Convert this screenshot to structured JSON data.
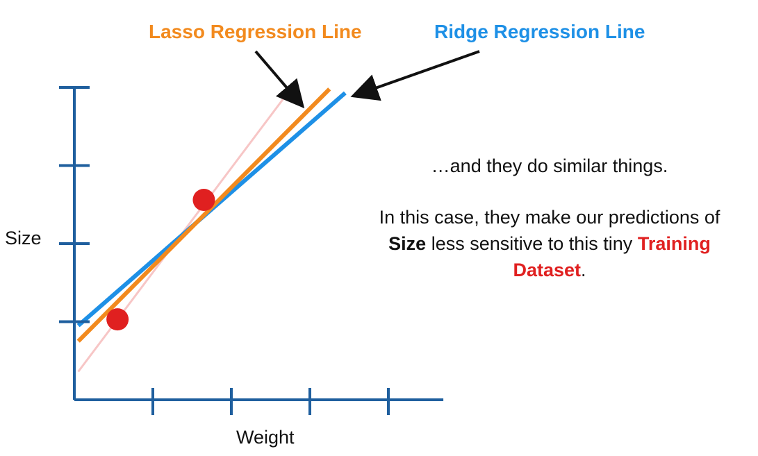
{
  "chart_data": {
    "type": "scatter",
    "xlabel": "Weight",
    "ylabel": "Size",
    "xlim": [
      0,
      4.7
    ],
    "ylim": [
      0,
      4
    ],
    "x_ticks": [
      1,
      2,
      3,
      4
    ],
    "y_ticks": [
      1,
      2,
      3,
      4
    ],
    "points": [
      {
        "x": 0.55,
        "y": 1.03
      },
      {
        "x": 1.65,
        "y": 2.56
      }
    ],
    "lines": [
      {
        "name": "Lasso Regression Line",
        "color": "#f28a1e",
        "x": [
          0.05,
          3.25
        ],
        "y": [
          0.75,
          3.98
        ]
      },
      {
        "name": "Ridge Regression Line",
        "color": "#1e90e6",
        "x": [
          0.05,
          3.45
        ],
        "y": [
          0.95,
          3.93
        ]
      },
      {
        "name": "",
        "color": "#f7c6c6",
        "x": [
          0.05,
          2.8
        ],
        "y": [
          0.36,
          4.04
        ]
      }
    ],
    "colors": {
      "axis": "#1f5f9e",
      "point": "#e02020"
    }
  },
  "annotations": {
    "lasso_label": "Lasso Regression Line",
    "ridge_label": "Ridge Regression Line",
    "lasso_color": "#f28a1e",
    "ridge_color": "#1e90e6"
  },
  "narration": {
    "line1": "…and they do similar things.",
    "line2_prefix": "In this case, they make our predictions of",
    "size_word": "Size",
    "line2_mid": " less sensitive to this tiny ",
    "training_word": "Training",
    "dataset_word": "Dataset",
    "period": "."
  }
}
